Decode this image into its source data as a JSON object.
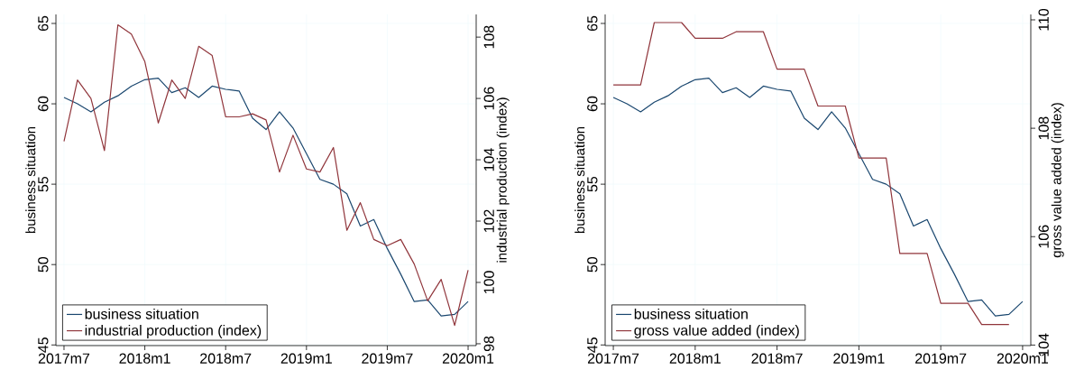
{
  "chart_data": [
    {
      "type": "line",
      "x": [
        "2017-07",
        "2017-08",
        "2017-09",
        "2017-10",
        "2017-11",
        "2017-12",
        "2018-01",
        "2018-02",
        "2018-03",
        "2018-04",
        "2018-05",
        "2018-06",
        "2018-07",
        "2018-08",
        "2018-09",
        "2018-10",
        "2018-11",
        "2018-12",
        "2019-01",
        "2019-02",
        "2019-03",
        "2019-04",
        "2019-05",
        "2019-06",
        "2019-07",
        "2019-08",
        "2019-09",
        "2019-10",
        "2019-11",
        "2019-12",
        "2020-01"
      ],
      "series": [
        {
          "name": "business situation",
          "color": "#1a476f",
          "values": [
            60.4,
            60.0,
            59.5,
            60.1,
            60.5,
            61.1,
            61.5,
            61.6,
            60.7,
            61.0,
            60.4,
            61.1,
            60.9,
            60.8,
            59.1,
            58.4,
            59.5,
            58.5,
            56.9,
            55.3,
            55.0,
            54.4,
            52.4,
            52.8,
            51.0,
            49.4,
            47.7,
            47.8,
            46.8,
            46.9,
            47.7
          ]
        },
        {
          "name": "industrial production (index)",
          "color": "#90353b",
          "axis": "y2",
          "values": [
            104.6,
            106.6,
            106.0,
            104.3,
            108.4,
            108.1,
            107.2,
            105.2,
            106.6,
            106.0,
            107.7,
            107.4,
            105.4,
            105.4,
            105.5,
            105.3,
            103.6,
            104.8,
            103.7,
            103.6,
            104.4,
            101.7,
            102.6,
            101.4,
            101.2,
            101.4,
            100.6,
            99.4,
            100.1,
            98.6,
            100.4
          ]
        }
      ],
      "ylabel": "business situation",
      "y2label": "industrial production (index)",
      "xlim": [
        "2017-06-13",
        "2020-01-19"
      ],
      "xticks": [
        {
          "value": "2017-07",
          "label": "2017m7"
        },
        {
          "value": "2018-01",
          "label": "2018m1"
        },
        {
          "value": "2018-07",
          "label": "2018m7"
        },
        {
          "value": "2019-01",
          "label": "2019m1"
        },
        {
          "value": "2019-07",
          "label": "2019m7"
        },
        {
          "value": "2020-01",
          "label": "2020m1"
        }
      ],
      "ylim": [
        44.96,
        65.56
      ],
      "yticks": [
        45,
        50,
        55,
        60,
        65
      ],
      "y2lim": [
        97.94,
        108.74
      ],
      "y2ticks": [
        98,
        100,
        102,
        104,
        106,
        108
      ],
      "grid": true,
      "legend": "bottom left",
      "marker": "none",
      "line_style": "solid"
    },
    {
      "type": "line",
      "x": [
        "2017-07",
        "2017-08",
        "2017-09",
        "2017-10",
        "2017-11",
        "2017-12",
        "2018-01",
        "2018-02",
        "2018-03",
        "2018-04",
        "2018-05",
        "2018-06",
        "2018-07",
        "2018-08",
        "2018-09",
        "2018-10",
        "2018-11",
        "2018-12",
        "2019-01",
        "2019-02",
        "2019-03",
        "2019-04",
        "2019-05",
        "2019-06",
        "2019-07",
        "2019-08",
        "2019-09",
        "2019-10",
        "2019-11",
        "2019-12",
        "2020-01"
      ],
      "series": [
        {
          "name": "business situation",
          "color": "#1a476f",
          "values": [
            60.4,
            60.0,
            59.5,
            60.1,
            60.5,
            61.1,
            61.5,
            61.6,
            60.7,
            61.0,
            60.4,
            61.1,
            60.9,
            60.8,
            59.1,
            58.4,
            59.5,
            58.5,
            56.9,
            55.3,
            55.0,
            54.4,
            52.4,
            52.8,
            51.0,
            49.4,
            47.7,
            47.8,
            46.8,
            46.9,
            47.7
          ]
        },
        {
          "name": "gross value added (index)",
          "color": "#90353b",
          "axis": "y2",
          "values": [
            108.8,
            108.8,
            108.8,
            109.95,
            109.95,
            109.95,
            109.66,
            109.66,
            109.66,
            109.78,
            109.78,
            109.78,
            109.09,
            109.09,
            109.09,
            108.41,
            108.41,
            108.41,
            107.45,
            107.45,
            107.45,
            105.69,
            105.69,
            105.69,
            104.77,
            104.77,
            104.77,
            104.38,
            104.38,
            104.38,
            null
          ]
        }
      ],
      "ylabel": "business situation",
      "y2label": "gross value added (index)",
      "xlim": [
        "2017-06-13",
        "2020-01-19"
      ],
      "xticks": [
        {
          "value": "2017-07",
          "label": "2017m7"
        },
        {
          "value": "2018-01",
          "label": "2018m1"
        },
        {
          "value": "2018-07",
          "label": "2018m7"
        },
        {
          "value": "2019-01",
          "label": "2019m1"
        },
        {
          "value": "2019-07",
          "label": "2019m7"
        },
        {
          "value": "2020-01",
          "label": "2020m1"
        }
      ],
      "ylim": [
        44.96,
        65.56
      ],
      "yticks": [
        45,
        50,
        55,
        60,
        65
      ],
      "y2lim": [
        103.99,
        110.1
      ],
      "y2ticks": [
        104,
        106,
        108,
        110
      ],
      "grid": true,
      "legend": "bottom left",
      "marker": "none",
      "line_style": "solid"
    }
  ]
}
